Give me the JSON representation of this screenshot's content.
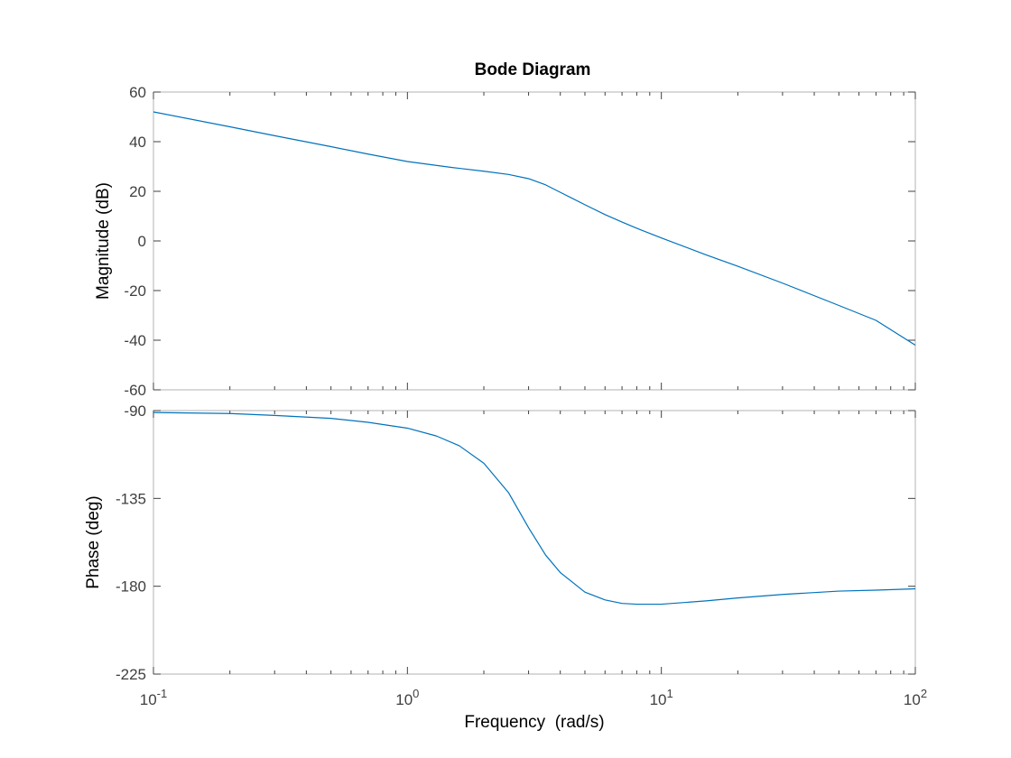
{
  "chart_data": {
    "type": "line",
    "title": "Bode Diagram",
    "xlabel": "Frequency  (rad/s)",
    "x_scale": "log",
    "xlim": [
      0.1,
      100
    ],
    "x_ticks": [
      {
        "base": "10",
        "exp": "-1"
      },
      {
        "base": "10",
        "exp": "0"
      },
      {
        "base": "10",
        "exp": "1"
      },
      {
        "base": "10",
        "exp": "2"
      }
    ],
    "grid": false,
    "line_color": "#0072BD",
    "panels": [
      {
        "name": "magnitude",
        "ylabel": "Magnitude (dB)",
        "ylim": [
          -60,
          60
        ],
        "yticks": [
          "60",
          "40",
          "20",
          "0",
          "-20",
          "-40",
          "-60"
        ],
        "x": [
          0.1,
          0.2,
          0.3,
          0.5,
          0.7,
          1,
          1.5,
          2,
          2.5,
          3,
          3.5,
          4,
          5,
          6,
          7,
          8,
          10,
          15,
          20,
          30,
          50,
          70,
          100
        ],
        "y": [
          52,
          46,
          42.4,
          38,
          35,
          32,
          29.6,
          28.1,
          26.8,
          25.1,
          22.6,
          19.6,
          14.6,
          10.6,
          7.6,
          5.1,
          1.2,
          -5.6,
          -10.2,
          -17,
          -26,
          -32,
          -42
        ]
      },
      {
        "name": "phase",
        "ylabel": "Phase (deg)",
        "ylim": [
          -225,
          -90
        ],
        "yticks": [
          "-90",
          "-135",
          "-180",
          "-225"
        ],
        "x": [
          0.1,
          0.2,
          0.3,
          0.5,
          0.7,
          1,
          1.3,
          1.6,
          2,
          2.5,
          3,
          3.5,
          4,
          5,
          6,
          7,
          8,
          10,
          15,
          20,
          30,
          50,
          70,
          100
        ],
        "y": [
          -91,
          -91.5,
          -92.5,
          -94,
          -96,
          -99,
          -103,
          -108,
          -117,
          -132,
          -150,
          -164,
          -173,
          -183,
          -187,
          -188.8,
          -189.2,
          -189.2,
          -187.5,
          -186,
          -184.2,
          -182.5,
          -182,
          -181.3
        ]
      }
    ]
  }
}
